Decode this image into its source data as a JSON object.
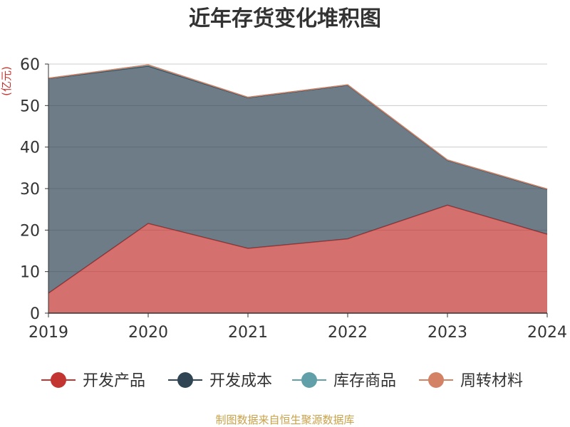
{
  "chart_data": {
    "type": "area",
    "title": "近年存货变化堆积图",
    "ylabel": "(亿元)",
    "xlabel": "",
    "ylim": [
      0,
      60
    ],
    "yticks": [
      0,
      10,
      20,
      30,
      40,
      50,
      60
    ],
    "x": [
      "2019",
      "2020",
      "2021",
      "2022",
      "2023",
      "2024"
    ],
    "grid": true,
    "stacked": true,
    "legend_position": "bottom",
    "series": [
      {
        "name": "开发产品",
        "color": "#c23531",
        "values": [
          4.8,
          21.6,
          15.6,
          17.9,
          26.0,
          19.0
        ]
      },
      {
        "name": "开发成本",
        "color": "#2f4554",
        "values": [
          51.7,
          37.9,
          36.3,
          37.0,
          10.8,
          10.8
        ]
      },
      {
        "name": "库存商品",
        "color": "#61a0a8",
        "values": [
          0.1,
          0.3,
          0.1,
          0.1,
          0.1,
          0.1
        ]
      },
      {
        "name": "周转材料",
        "color": "#d48265",
        "values": [
          0.0,
          0.0,
          0.0,
          0.0,
          0.0,
          0.0
        ]
      }
    ]
  },
  "footer": {
    "source": "制图数据来自恒生聚源数据库"
  }
}
